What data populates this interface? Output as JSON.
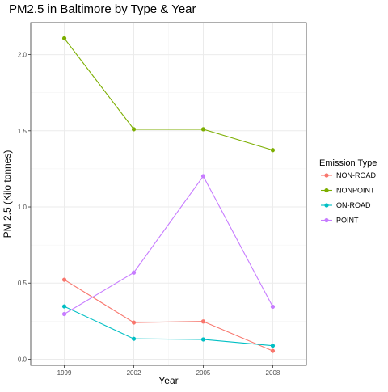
{
  "chart_data": {
    "type": "line",
    "title": "PM2.5 in Baltimore by Type & Year",
    "xlabel": "Year",
    "ylabel": "PM 2.5 (Kilo tonnes)",
    "x": [
      1999,
      2002,
      2005,
      2008
    ],
    "x_tick_labels": [
      "1999",
      "2002",
      "2005",
      "2008"
    ],
    "y_ticks": [
      0.0,
      0.5,
      1.0,
      1.5,
      2.0
    ],
    "y_tick_labels": [
      "0.0",
      "0.5",
      "1.0",
      "1.5",
      "2.0"
    ],
    "ylim": [
      -0.04,
      2.21
    ],
    "xlim": [
      1997.55,
      2009.45
    ],
    "grid": true,
    "legend": {
      "title": "Emission Type",
      "placement": "right"
    },
    "series": [
      {
        "name": "NON-ROAD",
        "color": "#F8766D",
        "values": [
          0.522,
          0.241,
          0.248,
          0.055
        ]
      },
      {
        "name": "NONPOINT",
        "color": "#7CAE00",
        "values": [
          2.107,
          1.51,
          1.51,
          1.373
        ]
      },
      {
        "name": "ON-ROAD",
        "color": "#00BFC4",
        "values": [
          0.347,
          0.134,
          0.13,
          0.089
        ]
      },
      {
        "name": "POINT",
        "color": "#C77CFF",
        "values": [
          0.297,
          0.569,
          1.202,
          0.345
        ]
      }
    ]
  }
}
